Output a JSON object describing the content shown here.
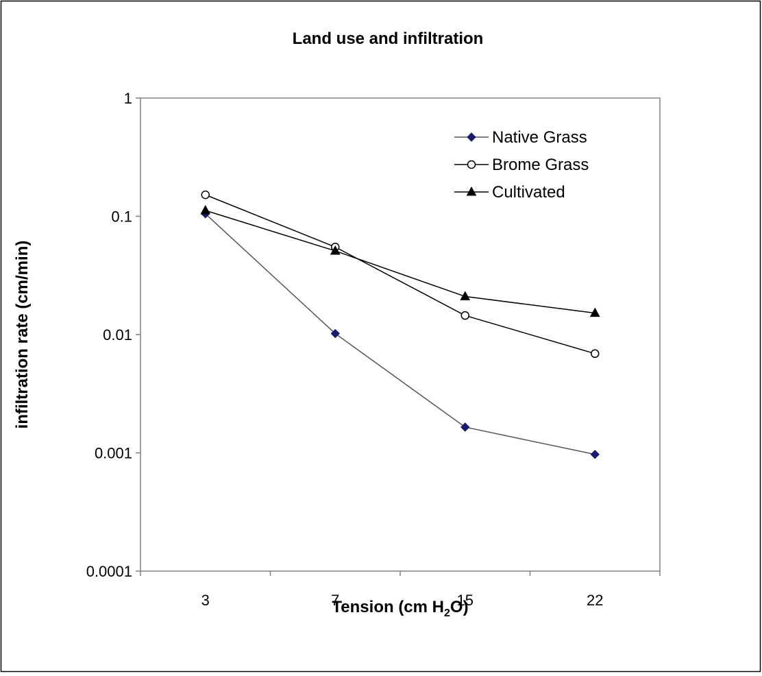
{
  "chart_data": {
    "type": "line",
    "title": "Land use and infiltration",
    "xlabel": "Tension (cm H",
    "xlabel_subscript": "2",
    "xlabel_suffix": "O)",
    "ylabel": "infiltration rate (cm/min)",
    "categories": [
      "3",
      "7",
      "15",
      "22"
    ],
    "y_scale": "log",
    "ylim": [
      0.0001,
      1
    ],
    "y_ticks": [
      {
        "value": 1,
        "label": "1"
      },
      {
        "value": 0.1,
        "label": "0.1"
      },
      {
        "value": 0.01,
        "label": "0.01"
      },
      {
        "value": 0.001,
        "label": "0.001"
      },
      {
        "value": 0.0001,
        "label": "0.0001"
      }
    ],
    "grid": false,
    "legend_position": "top-right",
    "series": [
      {
        "name": "Native Grass",
        "marker": "diamond",
        "marker_color": "#1a1a6e",
        "line_color": "#555555",
        "values": [
          0.105,
          0.0102,
          0.00165,
          0.00097
        ]
      },
      {
        "name": "Brome Grass",
        "marker": "circle-open",
        "marker_color": "#000000",
        "line_color": "#000000",
        "values": [
          0.152,
          0.055,
          0.0145,
          0.0069
        ]
      },
      {
        "name": "Cultivated",
        "marker": "triangle",
        "marker_color": "#000000",
        "line_color": "#000000",
        "values": [
          0.112,
          0.051,
          0.021,
          0.0152
        ]
      }
    ]
  }
}
